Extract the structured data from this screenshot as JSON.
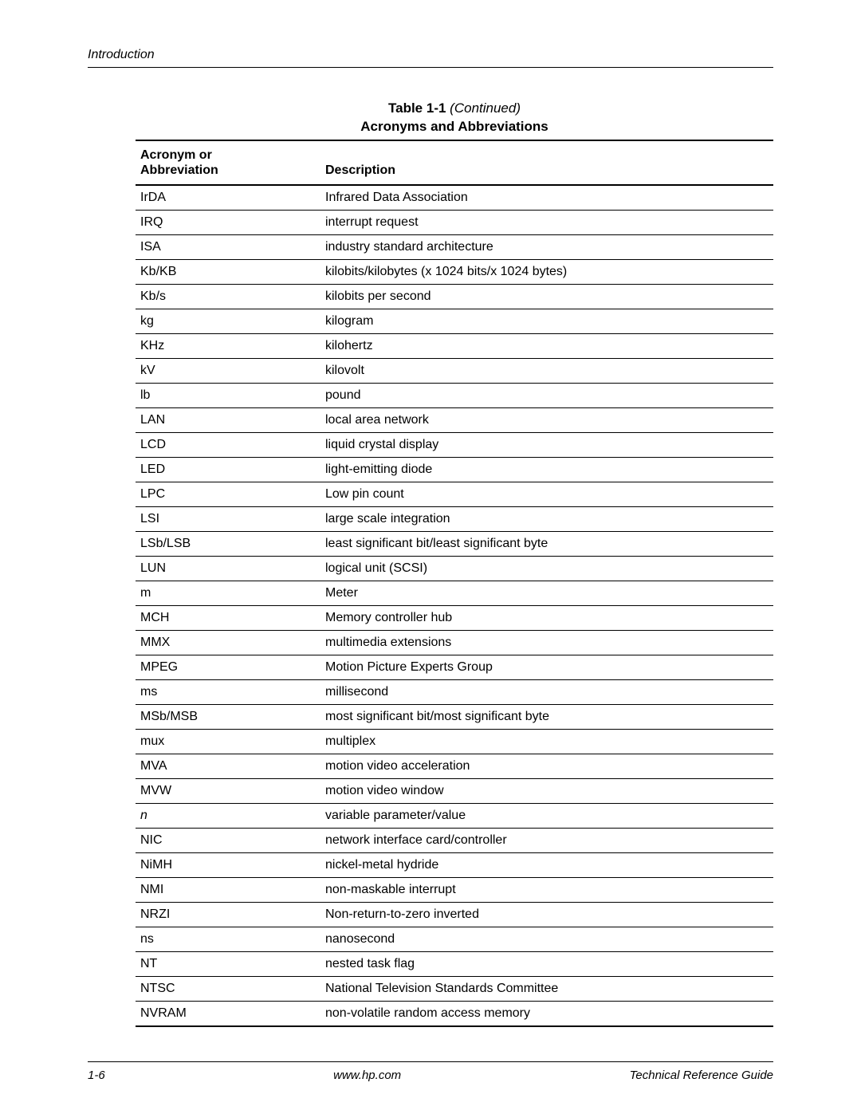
{
  "page": {
    "section_header": "Introduction",
    "footer_left": "1-6",
    "footer_center": "www.hp.com",
    "footer_right": "Technical Reference Guide"
  },
  "table": {
    "label": "Table 1-1",
    "continued": "(Continued)",
    "subtitle": "Acronyms and Abbreviations",
    "columns": {
      "col1_line1": "Acronym or",
      "col1_line2": "Abbreviation",
      "col2": "Description"
    },
    "rows": [
      {
        "abbr": "IrDA",
        "desc": "Infrared Data Association"
      },
      {
        "abbr": "IRQ",
        "desc": "interrupt request"
      },
      {
        "abbr": "ISA",
        "desc": "industry standard architecture"
      },
      {
        "abbr": "Kb/KB",
        "desc": "kilobits/kilobytes  (x 1024 bits/x 1024 bytes)"
      },
      {
        "abbr": "Kb/s",
        "desc": "kilobits per second"
      },
      {
        "abbr": "kg",
        "desc": "kilogram"
      },
      {
        "abbr": "KHz",
        "desc": "kilohertz"
      },
      {
        "abbr": "kV",
        "desc": "kilovolt"
      },
      {
        "abbr": "lb",
        "desc": "pound"
      },
      {
        "abbr": "LAN",
        "desc": "local area network"
      },
      {
        "abbr": "LCD",
        "desc": "liquid crystal display"
      },
      {
        "abbr": "LED",
        "desc": "light-emitting diode"
      },
      {
        "abbr": "LPC",
        "desc": "Low pin count"
      },
      {
        "abbr": "LSI",
        "desc": "large scale integration"
      },
      {
        "abbr": "LSb/LSB",
        "desc": "least significant bit/least significant byte"
      },
      {
        "abbr": "LUN",
        "desc": "logical unit (SCSI)"
      },
      {
        "abbr": "m",
        "desc": "Meter"
      },
      {
        "abbr": "MCH",
        "desc": "Memory controller hub"
      },
      {
        "abbr": "MMX",
        "desc": "multimedia extensions"
      },
      {
        "abbr": "MPEG",
        "desc": "Motion Picture Experts Group"
      },
      {
        "abbr": "ms",
        "desc": "millisecond"
      },
      {
        "abbr": "MSb/MSB",
        "desc": "most significant bit/most significant byte"
      },
      {
        "abbr": "mux",
        "desc": "multiplex"
      },
      {
        "abbr": "MVA",
        "desc": "motion video acceleration"
      },
      {
        "abbr": "MVW",
        "desc": "motion video window"
      },
      {
        "abbr": "n",
        "desc": "variable parameter/value",
        "italic_abbr": true
      },
      {
        "abbr": "NIC",
        "desc": "network interface card/controller"
      },
      {
        "abbr": "NiMH",
        "desc": "nickel-metal hydride"
      },
      {
        "abbr": "NMI",
        "desc": "non-maskable interrupt"
      },
      {
        "abbr": "NRZI",
        "desc": "Non-return-to-zero inverted"
      },
      {
        "abbr": "ns",
        "desc": "nanosecond"
      },
      {
        "abbr": "NT",
        "desc": "nested task flag"
      },
      {
        "abbr": "NTSC",
        "desc": "National Television Standards Committee"
      },
      {
        "abbr": "NVRAM",
        "desc": "non-volatile random access memory"
      }
    ]
  }
}
